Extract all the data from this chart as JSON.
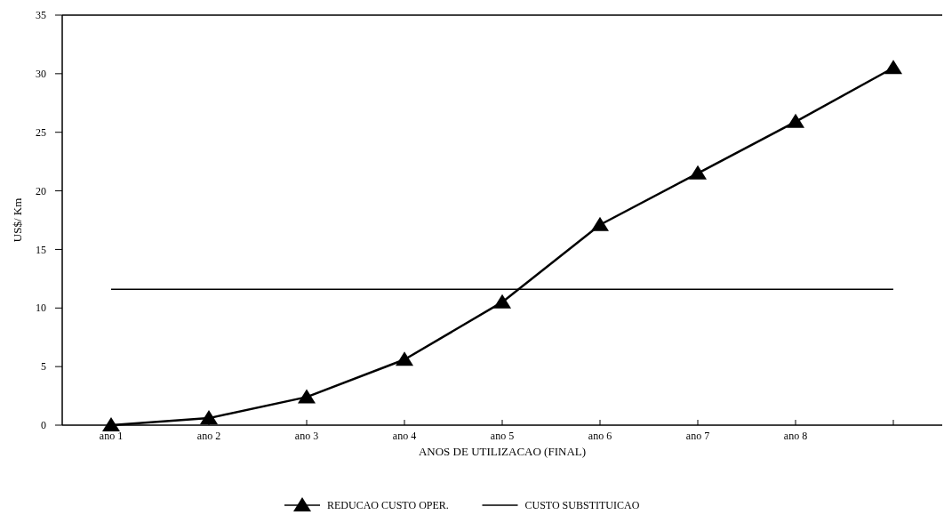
{
  "chart_data": {
    "type": "line",
    "xlabel": "ANOS DE UTILIZACAO (FINAL)",
    "ylabel": "US$/ Km",
    "categories": [
      "ano 1",
      "ano 2",
      "ano 3",
      "ano 4",
      "ano 5",
      "ano 6",
      "ano 7",
      "ano 8",
      null
    ],
    "series": [
      {
        "name": "REDUCAO CUSTO OPER.",
        "color": "#000000",
        "marker": "triangle",
        "values": [
          0,
          0.6,
          2.4,
          5.6,
          10.5,
          17.1,
          21.5,
          25.9,
          30.5
        ]
      },
      {
        "name": "CUSTO SUBSTITUICAO",
        "color": "#000000",
        "marker": "none",
        "values": [
          11.6,
          11.6,
          11.6,
          11.6,
          11.6,
          11.6,
          11.6,
          11.6,
          11.6
        ]
      }
    ],
    "ylim": [
      0,
      35
    ],
    "yticks": [
      0,
      5,
      10,
      15,
      20,
      25,
      30,
      35
    ],
    "grid": false,
    "legend": "bottom",
    "line_style": "solid"
  }
}
